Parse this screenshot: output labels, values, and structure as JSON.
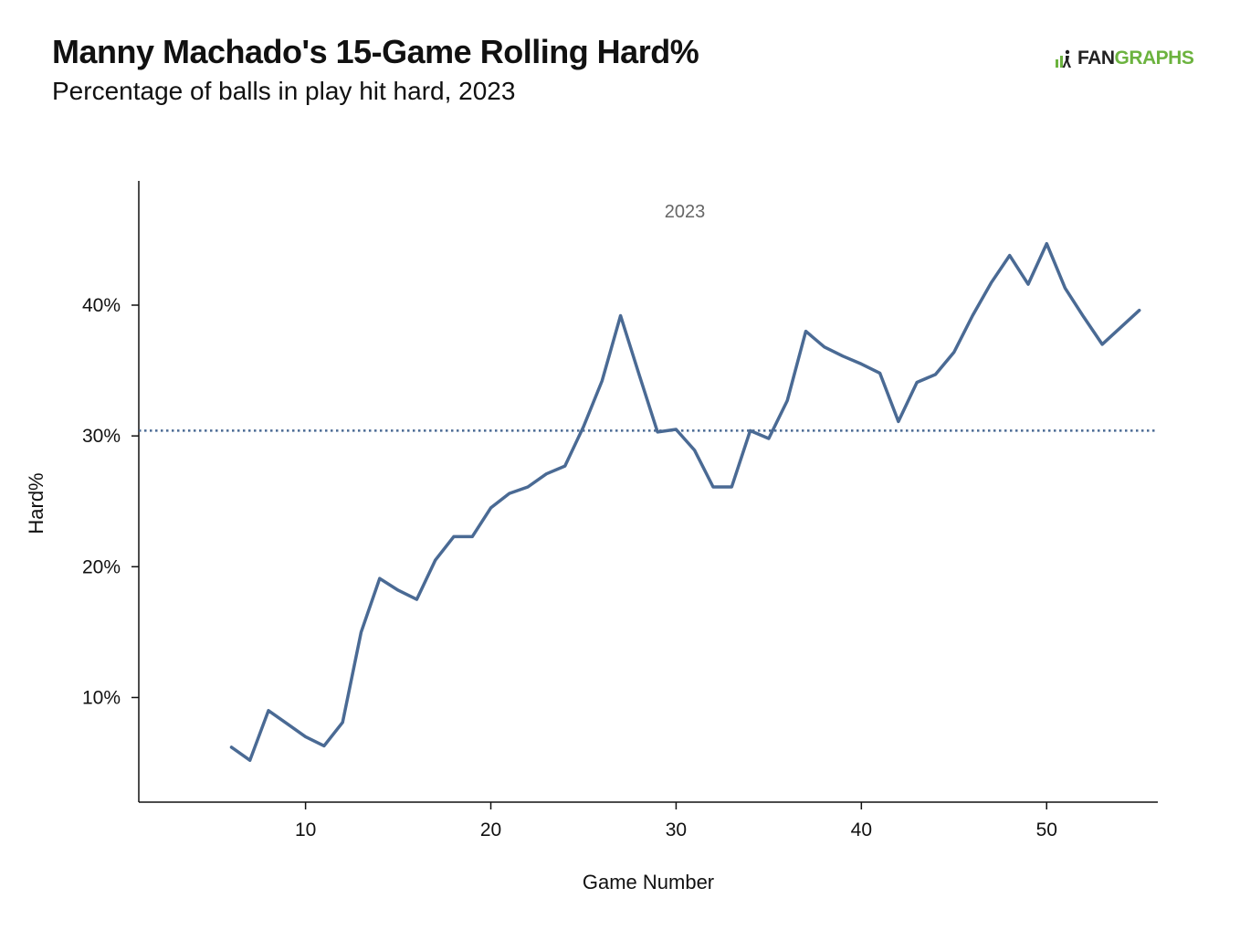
{
  "header": {
    "title": "Manny Machado's 15-Game Rolling Hard%",
    "subtitle": "Percentage of balls in play hit hard, 2023"
  },
  "logo": {
    "icon": "fangraphs-logo-icon",
    "part1": "FAN",
    "part2": "GRAPHS",
    "colors": {
      "fan": "#222222",
      "graphs": "#6cb33f"
    }
  },
  "chart_data": {
    "type": "line",
    "xlabel": "Game Number",
    "ylabel": "Hard%",
    "xlim": [
      1,
      56
    ],
    "ylim": [
      2,
      49.5
    ],
    "xticks": [
      10,
      20,
      30,
      40,
      50
    ],
    "yticks": [
      10,
      20,
      30,
      40
    ],
    "ytick_labels": [
      "10%",
      "20%",
      "30%",
      "40%"
    ],
    "grid": false,
    "annotation": "2023",
    "reference_line": {
      "y": 30.4,
      "style": "dotted",
      "color": "#4a6a94"
    },
    "line_color": "#4a6a94",
    "series": [
      {
        "x": [
          6,
          7,
          8,
          9,
          10,
          11,
          12,
          13,
          14,
          15,
          16,
          17,
          18,
          19,
          20,
          21,
          22,
          23,
          24,
          25,
          26,
          27,
          28,
          29,
          30,
          31,
          32,
          33,
          34,
          35,
          36,
          37,
          38,
          39,
          40,
          41,
          42,
          43,
          44,
          45,
          46,
          47,
          48,
          49,
          50,
          51,
          52,
          53,
          54,
          55
        ],
        "values": [
          6.2,
          5.2,
          9.0,
          8.0,
          7.0,
          6.3,
          8.1,
          15.0,
          19.1,
          18.2,
          17.5,
          20.5,
          22.3,
          22.3,
          24.5,
          25.6,
          26.1,
          27.1,
          27.7,
          30.7,
          34.2,
          39.2,
          34.7,
          30.3,
          30.5,
          28.9,
          26.1,
          26.1,
          30.4,
          29.8,
          32.7,
          38.0,
          36.8,
          36.1,
          35.5,
          34.8,
          31.1,
          34.1,
          34.7,
          36.4,
          39.2,
          41.7,
          43.8,
          41.6,
          44.7,
          41.3,
          39.1,
          37.0,
          38.3,
          39.6
        ]
      }
    ]
  }
}
